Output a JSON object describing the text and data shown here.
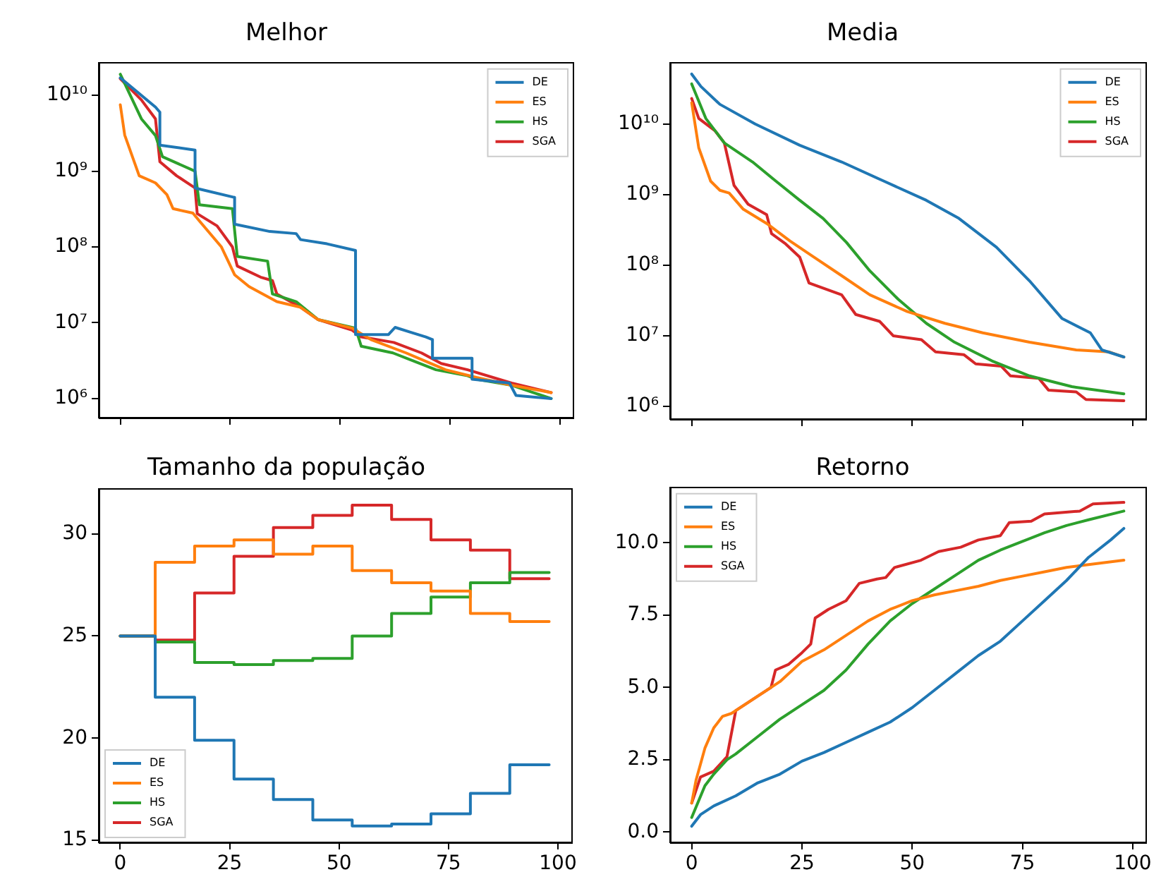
{
  "chart_data": [
    {
      "type": "line",
      "title": "Melhor",
      "log": "y",
      "legend": "top right",
      "tick_labels": "y",
      "xlim": [
        -4.9,
        102.9
      ],
      "xticks": [
        0,
        25,
        50,
        75,
        100
      ],
      "ylim": [
        560000,
        27000000000
      ],
      "yticks": [
        {
          "value": 1000000,
          "label": "10⁶"
        },
        {
          "value": 10000000,
          "label": "10⁷"
        },
        {
          "value": 100000000,
          "label": "10⁸"
        },
        {
          "value": 1000000000,
          "label": "10⁹"
        },
        {
          "value": 10000000000,
          "label": "10¹⁰"
        }
      ],
      "series": [
        {
          "name": "DE",
          "color": "#1f77b4",
          "x": [
            0,
            8,
            9,
            9,
            17,
            17,
            26,
            26,
            34,
            40,
            41,
            47,
            53.5,
            53.5,
            61,
            62.5,
            66,
            69.5,
            71,
            71,
            80,
            80,
            88.5,
            90,
            98
          ],
          "values": [
            17000000000,
            7000000000,
            6000000000,
            2200000000,
            1900000000,
            600000000,
            450000000,
            200000000,
            160000000,
            150000000,
            125000000,
            110000000,
            90000000,
            7000000,
            7000000,
            8700000,
            7500000,
            6500000,
            6000000,
            3400000,
            3400000,
            1800000,
            1600000,
            1100000,
            1000000
          ]
        },
        {
          "name": "ES",
          "color": "#ff7f0e",
          "x": [
            0,
            1,
            4.3,
            8,
            10.6,
            12,
            16.5,
            18,
            23,
            26,
            29.3,
            35.6,
            41,
            45,
            52.7,
            57,
            65,
            74,
            81,
            89,
            98
          ],
          "values": [
            7500000000,
            3000000000,
            870000000,
            700000000,
            490000000,
            320000000,
            280000000,
            220000000,
            100000000,
            43000000,
            30000000,
            19000000,
            16000000,
            11000000,
            8500000,
            6000000,
            4000000,
            2400000,
            1900000,
            1500000,
            1200000
          ]
        },
        {
          "name": "HS",
          "color": "#2ca02c",
          "x": [
            0,
            4.8,
            8,
            9.6,
            17,
            18,
            25.5,
            26.6,
            33.5,
            34.6,
            40,
            45,
            53.5,
            54.8,
            62,
            71.8,
            79,
            81,
            89,
            98
          ],
          "values": [
            19000000000,
            4900000000,
            2950000000,
            1550000000,
            1000000000,
            360000000,
            320000000,
            75000000,
            65000000,
            24000000,
            19000000,
            11000000,
            8500000,
            4900000,
            4000000,
            2400000,
            2000000,
            1800000,
            1500000,
            1000000
          ]
        },
        {
          "name": "SGA",
          "color": "#d62728",
          "x": [
            0,
            4.8,
            8,
            9,
            12.8,
            17,
            17.5,
            22,
            25.5,
            26.6,
            31.9,
            34.6,
            35.6,
            41,
            45,
            52.7,
            54.8,
            62.2,
            68.5,
            73,
            79,
            89,
            98
          ],
          "values": [
            16600000000,
            8700000000,
            4900000000,
            1330000000,
            870000000,
            600000000,
            275000000,
            190000000,
            100000000,
            56000000,
            40000000,
            36000000,
            24000000,
            16000000,
            11000000,
            8000000,
            6500000,
            5500000,
            4000000,
            2900000,
            2400000,
            1600000,
            1200000
          ]
        }
      ]
    },
    {
      "type": "line",
      "title": "Media",
      "log": "y",
      "legend": "top right",
      "tick_labels": "y",
      "xlim": [
        -4.9,
        102.9
      ],
      "xticks": [
        0,
        25,
        50,
        75,
        100
      ],
      "ylim": [
        660000,
        74000000000
      ],
      "yticks": [
        {
          "value": 1000000,
          "label": "10⁶"
        },
        {
          "value": 10000000,
          "label": "10⁷"
        },
        {
          "value": 100000000,
          "label": "10⁸"
        },
        {
          "value": 1000000000,
          "label": "10⁹"
        },
        {
          "value": 10000000000,
          "label": "10¹⁰"
        }
      ],
      "series": [
        {
          "name": "DE",
          "color": "#1f77b4",
          "x": [
            0,
            2.1,
            6.4,
            14.4,
            24.5,
            34,
            43.6,
            53.2,
            60.6,
            69.1,
            76.6,
            84,
            90.4,
            93,
            98
          ],
          "values": [
            51000000000,
            34000000000,
            19000000000,
            10000000000,
            5000000000,
            2900000000,
            1550000000,
            830000000,
            460000000,
            180000000,
            60000000,
            17500000,
            11000000,
            6300000,
            5000000
          ]
        },
        {
          "name": "ES",
          "color": "#ff7f0e",
          "x": [
            0,
            1.6,
            4.3,
            6.4,
            8.5,
            11.7,
            17,
            22.3,
            27.7,
            34,
            40.4,
            48.9,
            57.4,
            66,
            76.6,
            87.2,
            94.7,
            98
          ],
          "values": [
            20000000000,
            4600000000,
            1550000000,
            1150000000,
            1050000000,
            620000000,
            390000000,
            220000000,
            130000000,
            71000000,
            38000000,
            22000000,
            15000000,
            11000000,
            8100000,
            6300000,
            5900000,
            5000000
          ]
        },
        {
          "name": "HS",
          "color": "#2ca02c",
          "x": [
            0,
            3.2,
            7.4,
            13.8,
            19.1,
            24.5,
            29.8,
            35.1,
            40.4,
            46.8,
            53.2,
            59.6,
            68.1,
            76.6,
            86.2,
            98
          ],
          "values": [
            37000000000,
            12000000000,
            5400000000,
            2900000000,
            1550000000,
            830000000,
            460000000,
            210000000,
            83000000,
            33000000,
            15000000,
            8100000,
            4400000,
            2700000,
            1900000,
            1500000
          ]
        },
        {
          "name": "SGA",
          "color": "#d62728",
          "x": [
            0,
            1.6,
            5.3,
            7.4,
            9.6,
            12.8,
            17,
            18.1,
            21.3,
            24.5,
            26.6,
            34,
            37.2,
            42.6,
            45.7,
            52.1,
            55.3,
            61.7,
            64.4,
            70.2,
            72.3,
            78.7,
            80.9,
            87.2,
            89.4,
            98
          ],
          "values": [
            23000000000,
            12000000000,
            8000000000,
            5400000000,
            1350000000,
            730000000,
            520000000,
            280000000,
            200000000,
            130000000,
            56000000,
            38000000,
            20000000,
            16000000,
            10000000,
            8800000,
            5900000,
            5400000,
            4000000,
            3700000,
            2700000,
            2500000,
            1700000,
            1600000,
            1250000,
            1200000
          ]
        }
      ]
    },
    {
      "type": "step",
      "title": "Tamanho da população",
      "legend": "bottom left",
      "xlim": [
        -4.9,
        102.9
      ],
      "xticks": [
        0,
        25,
        50,
        75,
        100
      ],
      "ylim": [
        14.9,
        32.2
      ],
      "yticks": [
        15,
        20,
        25,
        30
      ],
      "x": [
        0,
        8,
        17,
        26,
        35,
        44,
        53,
        62,
        71,
        80,
        89,
        98
      ],
      "series": [
        {
          "name": "DE",
          "color": "#1f77b4",
          "values": [
            25,
            22,
            19.9,
            18,
            17,
            16,
            15.7,
            15.8,
            16.3,
            17.3,
            18.7,
            18.7
          ]
        },
        {
          "name": "ES",
          "color": "#ff7f0e",
          "values": [
            25,
            28.6,
            29.4,
            29.7,
            29,
            29.4,
            28.2,
            27.6,
            27.2,
            26.1,
            25.7,
            25.7
          ]
        },
        {
          "name": "HS",
          "color": "#2ca02c",
          "values": [
            25,
            24.7,
            23.7,
            23.6,
            23.8,
            23.9,
            25,
            26.1,
            26.9,
            27.6,
            28.1,
            28.1
          ]
        },
        {
          "name": "SGA",
          "color": "#d62728",
          "values": [
            25,
            24.8,
            27.1,
            28.9,
            30.3,
            30.9,
            31.4,
            30.7,
            29.7,
            29.2,
            27.8,
            27.8
          ]
        }
      ]
    },
    {
      "type": "line",
      "title": "Retorno",
      "legend": "top left",
      "xlim": [
        -4.9,
        102.9
      ],
      "xticks": [
        0,
        25,
        50,
        75,
        100
      ],
      "ylim": [
        -0.36,
        11.92
      ],
      "yticks": [
        {
          "value": 0,
          "label": "0.0"
        },
        {
          "value": 2.5,
          "label": "2.5"
        },
        {
          "value": 5,
          "label": "5.0"
        },
        {
          "value": 7.5,
          "label": "7.5"
        },
        {
          "value": 10,
          "label": "10.0"
        }
      ],
      "series": [
        {
          "name": "DE",
          "color": "#1f77b4",
          "x": [
            0,
            2,
            5,
            10,
            15,
            20,
            25,
            30,
            35,
            40,
            45,
            50,
            55,
            60,
            65,
            70,
            75,
            80,
            85,
            90,
            95,
            98
          ],
          "values": [
            0.2,
            0.6,
            0.9,
            1.25,
            1.7,
            2,
            2.45,
            2.75,
            3.1,
            3.45,
            3.8,
            4.3,
            4.9,
            5.5,
            6.1,
            6.6,
            7.3,
            8,
            8.7,
            9.5,
            10.1,
            10.5
          ]
        },
        {
          "name": "ES",
          "color": "#ff7f0e",
          "x": [
            0,
            1,
            3,
            5,
            7,
            9,
            10,
            15,
            20,
            25,
            30,
            35,
            40,
            45,
            50,
            55,
            60,
            65,
            70,
            75,
            80,
            85,
            90,
            98
          ],
          "values": [
            1,
            1.8,
            2.9,
            3.6,
            4,
            4.1,
            4.2,
            4.7,
            5.2,
            5.9,
            6.3,
            6.8,
            7.3,
            7.7,
            8,
            8.2,
            8.35,
            8.5,
            8.7,
            8.85,
            9,
            9.15,
            9.25,
            9.4
          ]
        },
        {
          "name": "HS",
          "color": "#2ca02c",
          "x": [
            0,
            3,
            5,
            8,
            10,
            15,
            20,
            25,
            30,
            35,
            40,
            45,
            50,
            55,
            60,
            65,
            70,
            75,
            80,
            85,
            90,
            98
          ],
          "values": [
            0.5,
            1.6,
            2,
            2.5,
            2.7,
            3.3,
            3.9,
            4.4,
            4.9,
            5.6,
            6.5,
            7.3,
            7.9,
            8.4,
            8.9,
            9.4,
            9.75,
            10.05,
            10.35,
            10.6,
            10.8,
            11.1
          ]
        },
        {
          "name": "SGA",
          "color": "#d62728",
          "x": [
            0,
            2,
            5,
            8,
            10,
            15,
            18,
            19,
            22,
            25,
            27,
            28,
            31,
            35,
            38,
            42,
            44,
            46,
            52,
            56,
            61,
            65,
            70,
            72,
            77,
            80,
            88,
            91,
            98
          ],
          "values": [
            1,
            1.9,
            2.1,
            2.6,
            4.2,
            4.7,
            5,
            5.6,
            5.8,
            6.2,
            6.5,
            7.4,
            7.7,
            8,
            8.6,
            8.75,
            8.8,
            9.15,
            9.4,
            9.7,
            9.85,
            10.1,
            10.25,
            10.7,
            10.75,
            11,
            11.1,
            11.35,
            11.4
          ]
        }
      ]
    }
  ]
}
